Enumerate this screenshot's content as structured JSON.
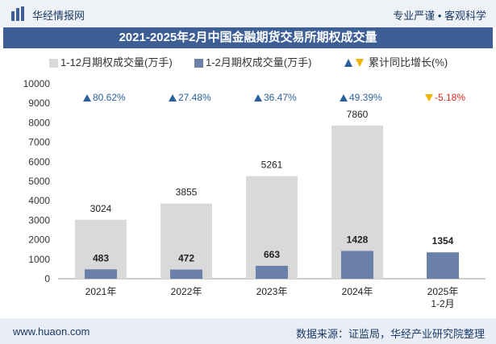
{
  "header": {
    "brand": "华经情报网",
    "slogan": "专业严谨 • 客观科学"
  },
  "footer": {
    "url": "www.huaon.com",
    "source": "数据来源：证监局，华经产业研究院整理"
  },
  "colors": {
    "series1": "#d9d9d9",
    "series2": "#6b80a8",
    "up": "#2b5f9e",
    "down": "#f0b400",
    "down_text": "#e1251b"
  },
  "chart_data": {
    "type": "bar",
    "title": "2021-2025年2月中国金融期货交易所期权成交量",
    "categories": [
      "2021年",
      "2022年",
      "2023年",
      "2024年",
      "2025年\n1-2月"
    ],
    "series": [
      {
        "name": "1-12月期权成交量(万手)",
        "values": [
          3024,
          3855,
          5261,
          7860,
          null
        ]
      },
      {
        "name": "1-2月期权成交量(万手)",
        "values": [
          483,
          472,
          663,
          1428,
          1354
        ]
      }
    ],
    "growth": {
      "name": "累计同比增长(%)",
      "labels": [
        "80.62%",
        "27.48%",
        "36.47%",
        "49.39%",
        "-5.18%"
      ],
      "values": [
        80.62,
        27.48,
        36.47,
        49.39,
        -5.18
      ]
    },
    "ylim": [
      0,
      10000
    ],
    "yticks": [
      0,
      1000,
      2000,
      3000,
      4000,
      5000,
      6000,
      7000,
      8000,
      9000,
      10000
    ],
    "xlabel": "",
    "ylabel": ""
  }
}
